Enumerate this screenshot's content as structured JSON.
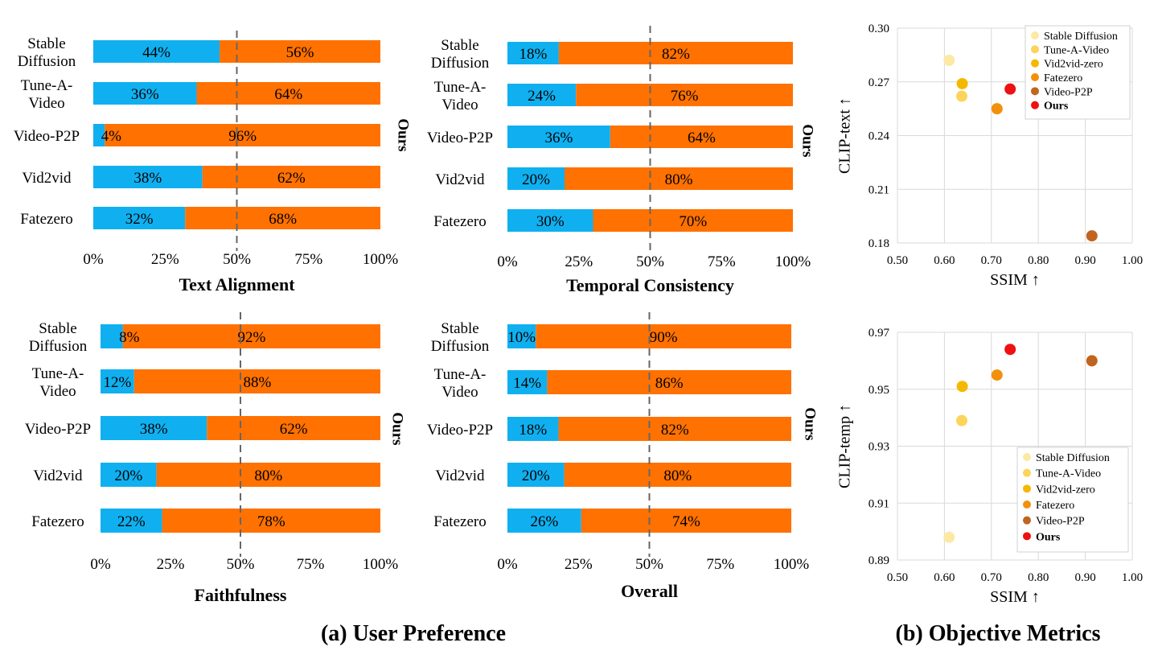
{
  "colors": {
    "ours": "#ff7100",
    "baseline": "#10b0f0",
    "midline": "#666666",
    "grid": "#d9d9d9",
    "stable_diffusion": "#fde8a4",
    "tune_a_video": "#fcd45a",
    "vid2vid_zero": "#f5b800",
    "fatezero": "#f2900c",
    "video_p2p": "#c0641f",
    "ours_point": "#ee1111"
  },
  "captions": {
    "left": "(a) User Preference",
    "right": "(b) Objective Metrics"
  },
  "chart_data": [
    {
      "type": "bar",
      "stacked": true,
      "orientation": "horizontal",
      "title": "Text Alignment",
      "categories": [
        "Stable\nDiffusion",
        "Tune-A-\nVideo",
        "Video-P2P",
        "Vid2vid",
        "Fatezero"
      ],
      "series": [
        {
          "values": [
            44,
            36,
            4,
            38,
            32
          ]
        },
        {
          "name": "Ours",
          "values": [
            56,
            64,
            96,
            62,
            68
          ]
        }
      ],
      "data_labels": [
        [
          "44%",
          "56%"
        ],
        [
          "36%",
          "64%"
        ],
        [
          "4%",
          "96%"
        ],
        [
          "38%",
          "62%"
        ],
        [
          "32%",
          "68%"
        ]
      ],
      "xticks": [
        "0%",
        "25%",
        "50%",
        "75%",
        "100%"
      ],
      "xlim": [
        0,
        100
      ],
      "reference_line": 50,
      "side_label": "Ours"
    },
    {
      "type": "bar",
      "stacked": true,
      "orientation": "horizontal",
      "title": "Temporal Consistency",
      "categories": [
        "Stable\nDiffusion",
        "Tune-A-\nVideo",
        "Video-P2P",
        "Vid2vid",
        "Fatezero"
      ],
      "series": [
        {
          "values": [
            18,
            24,
            36,
            20,
            30
          ]
        },
        {
          "name": "Ours",
          "values": [
            82,
            76,
            64,
            80,
            70
          ]
        }
      ],
      "data_labels": [
        [
          "18%",
          "82%"
        ],
        [
          "24%",
          "76%"
        ],
        [
          "36%",
          "64%"
        ],
        [
          "20%",
          "80%"
        ],
        [
          "30%",
          "70%"
        ]
      ],
      "xticks": [
        "0%",
        "25%",
        "50%",
        "75%",
        "100%"
      ],
      "xlim": [
        0,
        100
      ],
      "reference_line": 50,
      "side_label": "Ours"
    },
    {
      "type": "bar",
      "stacked": true,
      "orientation": "horizontal",
      "title": "Faithfulness",
      "categories": [
        "Stable\nDiffusion",
        "Tune-A-\nVideo",
        "Video-P2P",
        "Vid2vid",
        "Fatezero"
      ],
      "series": [
        {
          "values": [
            8,
            12,
            38,
            20,
            22
          ]
        },
        {
          "name": "Ours",
          "values": [
            92,
            88,
            62,
            80,
            78
          ]
        }
      ],
      "data_labels": [
        [
          "8%",
          "92%"
        ],
        [
          "12%",
          "88%"
        ],
        [
          "38%",
          "62%"
        ],
        [
          "20%",
          "80%"
        ],
        [
          "22%",
          "78%"
        ]
      ],
      "xticks": [
        "0%",
        "25%",
        "50%",
        "75%",
        "100%"
      ],
      "xlim": [
        0,
        100
      ],
      "reference_line": 50,
      "side_label": "Ours"
    },
    {
      "type": "bar",
      "stacked": true,
      "orientation": "horizontal",
      "title": "Overall",
      "categories": [
        "Stable\nDiffusion",
        "Tune-A-\nVideo",
        "Video-P2P",
        "Vid2vid",
        "Fatezero"
      ],
      "series": [
        {
          "values": [
            10,
            14,
            18,
            20,
            26
          ]
        },
        {
          "name": "Ours",
          "values": [
            90,
            86,
            82,
            80,
            74
          ]
        }
      ],
      "data_labels": [
        [
          "10%",
          "90%"
        ],
        [
          "14%",
          "86%"
        ],
        [
          "18%",
          "82%"
        ],
        [
          "20%",
          "80%"
        ],
        [
          "26%",
          "74%"
        ]
      ],
      "xticks": [
        "0%",
        "25%",
        "50%",
        "75%",
        "100%"
      ],
      "xlim": [
        0,
        100
      ],
      "reference_line": 50,
      "side_label": "Ours"
    },
    {
      "type": "scatter",
      "xlabel": "SSIM ↑",
      "ylabel": "CLIP-text ↑",
      "xlim": [
        0.5,
        1.0
      ],
      "ylim": [
        0.18,
        0.3
      ],
      "xticks": [
        "0.50",
        "0.60",
        "0.70",
        "0.80",
        "0.90",
        "1.00"
      ],
      "yticks": [
        "0.30",
        "0.27",
        "0.24",
        "0.21",
        "0.18"
      ],
      "grid": true,
      "legend_position": "top-right",
      "series": [
        {
          "name": "Stable Diffusion",
          "color": "#fde8a4",
          "bold": false,
          "x": 0.61,
          "y": 0.282
        },
        {
          "name": "Tune-A-Video",
          "color": "#fcd45a",
          "bold": false,
          "x": 0.637,
          "y": 0.262
        },
        {
          "name": "Vid2vid-zero",
          "color": "#f5b800",
          "bold": false,
          "x": 0.638,
          "y": 0.269
        },
        {
          "name": "Fatezero",
          "color": "#f2900c",
          "bold": false,
          "x": 0.712,
          "y": 0.255
        },
        {
          "name": "Video-P2P",
          "color": "#c0641f",
          "bold": false,
          "x": 0.914,
          "y": 0.184
        },
        {
          "name": "Ours",
          "color": "#ee1111",
          "bold": true,
          "x": 0.74,
          "y": 0.266
        }
      ]
    },
    {
      "type": "scatter",
      "xlabel": "SSIM ↑",
      "ylabel": "CLIP-temp ↑",
      "xlim": [
        0.5,
        1.0
      ],
      "ylim": [
        0.89,
        0.97
      ],
      "xticks": [
        "0.50",
        "0.60",
        "0.70",
        "0.80",
        "0.90",
        "1.00"
      ],
      "yticks": [
        "0.97",
        "0.95",
        "0.93",
        "0.91",
        "0.89"
      ],
      "grid": true,
      "legend_position": "bottom-right",
      "series": [
        {
          "name": "Stable Diffusion",
          "color": "#fde8a4",
          "bold": false,
          "x": 0.61,
          "y": 0.898
        },
        {
          "name": "Tune-A-Video",
          "color": "#fcd45a",
          "bold": false,
          "x": 0.637,
          "y": 0.939
        },
        {
          "name": "Vid2vid-zero",
          "color": "#f5b800",
          "bold": false,
          "x": 0.638,
          "y": 0.951
        },
        {
          "name": "Fatezero",
          "color": "#f2900c",
          "bold": false,
          "x": 0.712,
          "y": 0.955
        },
        {
          "name": "Video-P2P",
          "color": "#c0641f",
          "bold": false,
          "x": 0.914,
          "y": 0.96
        },
        {
          "name": "Ours",
          "color": "#ee1111",
          "bold": true,
          "x": 0.74,
          "y": 0.964
        }
      ]
    }
  ]
}
